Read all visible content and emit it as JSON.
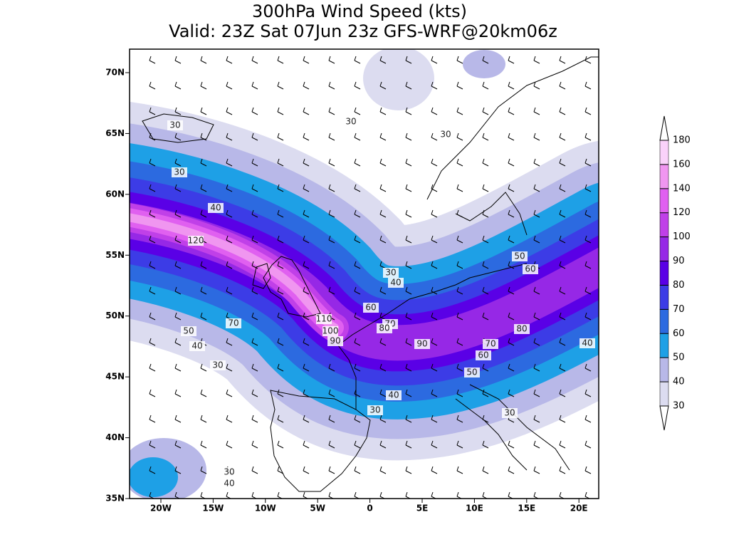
{
  "title": [
    "300hPa Wind Speed (kts)",
    "Valid: 23Z Sat 07Jun 23z GFS-WRF@20km06z"
  ],
  "lat_labels": [
    "70N",
    "65N",
    "60N",
    "55N",
    "50N",
    "45N",
    "40N",
    "35N"
  ],
  "lon_labels": [
    "20W",
    "15W",
    "10W",
    "5W",
    "0",
    "5E",
    "10E",
    "15E",
    "20E"
  ],
  "colorbar": {
    "ticks": [
      30,
      40,
      50,
      60,
      70,
      80,
      90,
      100,
      120,
      140,
      160,
      180
    ],
    "colors": [
      "#dcdcf0",
      "#b8b8e8",
      "#1ea0e6",
      "#2c6ae0",
      "#3c3ce6",
      "#5a00e6",
      "#9628e6",
      "#c040e8",
      "#e060f0",
      "#f096f0",
      "#fad2fa"
    ]
  },
  "contour_labels": [
    30,
    30,
    30,
    30,
    40,
    120,
    50,
    60,
    30,
    40,
    60,
    70,
    110,
    100,
    90,
    80,
    90,
    80,
    70,
    60,
    50,
    70,
    50,
    40,
    30,
    40,
    40,
    30,
    30,
    30,
    40
  ]
}
